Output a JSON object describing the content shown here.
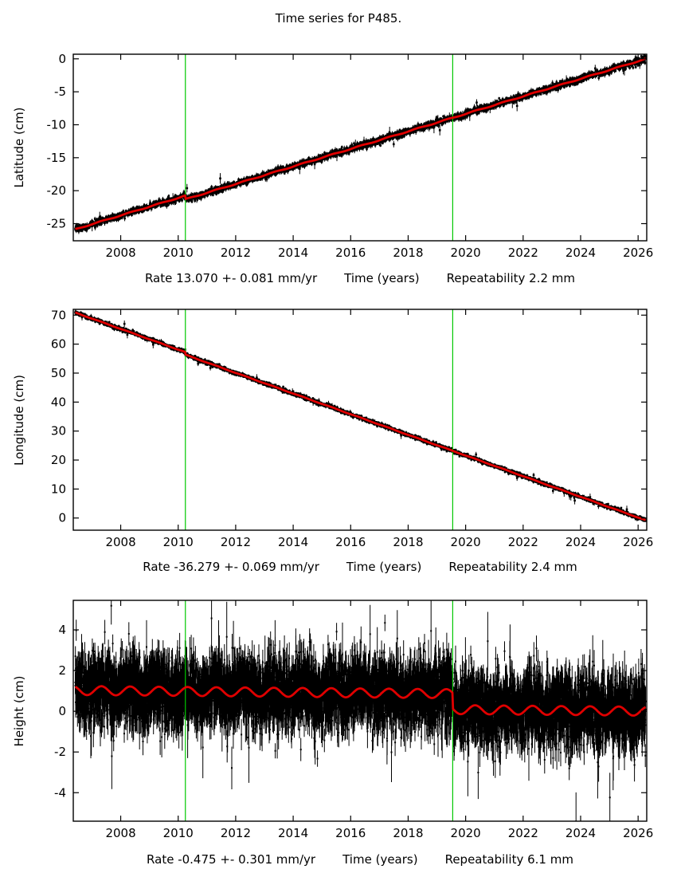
{
  "title": "Time series for P485.",
  "station_id": "P485",
  "colors": {
    "points": "#000000",
    "trend": "#e00000",
    "event_line": "#00c800",
    "frame": "#000000",
    "background": "#ffffff"
  },
  "chart_data": [
    {
      "type": "scatter",
      "name": "latitude",
      "ylabel": "Latitude (cm)",
      "xlabel": "Time (years)",
      "rate_label": "Rate 13.070 +- 0.081 mm/yr",
      "repeatability_label": "Repeatability 2.2 mm",
      "rate_mm_yr": 13.07,
      "rate_sigma_mm_yr": 0.081,
      "repeatability_mm": 2.2,
      "xlim": [
        2006.35,
        2026.3
      ],
      "ylim": [
        -27.6,
        0.7
      ],
      "xticks": [
        2008,
        2010,
        2012,
        2014,
        2016,
        2018,
        2020,
        2022,
        2024,
        2026
      ],
      "yticks": [
        0,
        -5,
        -10,
        -15,
        -20,
        -25
      ],
      "event_lines": [
        2010.25,
        2019.55
      ],
      "grid": false,
      "legend": "none",
      "series": {
        "start_t": 2006.42,
        "end_t": 2026.26,
        "ref_t": 2006.5,
        "intercept_cm": -25.75,
        "slope_cm_yr": 1.33,
        "steps": [
          {
            "t": 2010.25,
            "offset_cm": -0.55
          }
        ],
        "seasonal_amp_cm": 0.06,
        "noise_sd_cm": 0.24,
        "error_bar_cm": 0.3,
        "outlier_frac": 0.01,
        "outlier_sd_cm": 0.6
      }
    },
    {
      "type": "scatter",
      "name": "longitude",
      "ylabel": "Longitude (cm)",
      "xlabel": "Time (years)",
      "rate_label": "Rate -36.279 +- 0.069 mm/yr",
      "repeatability_label": "Repeatability 2.4 mm",
      "rate_mm_yr": -36.279,
      "rate_sigma_mm_yr": 0.069,
      "repeatability_mm": 2.4,
      "xlim": [
        2006.35,
        2026.3
      ],
      "ylim": [
        -4.2,
        72
      ],
      "xticks": [
        2008,
        2010,
        2012,
        2014,
        2016,
        2018,
        2020,
        2022,
        2024,
        2026
      ],
      "yticks": [
        70,
        60,
        50,
        40,
        30,
        20,
        10,
        0
      ],
      "event_lines": [
        2010.25,
        2019.55
      ],
      "grid": false,
      "legend": "none",
      "series": {
        "start_t": 2006.42,
        "end_t": 2026.26,
        "ref_t": 2006.5,
        "intercept_cm": 70.6,
        "slope_cm_yr": -3.565,
        "steps": [
          {
            "t": 2010.25,
            "offset_cm": -0.9
          }
        ],
        "seasonal_amp_cm": 0.07,
        "noise_sd_cm": 0.3,
        "error_bar_cm": 0.45,
        "outlier_frac": 0.012,
        "outlier_sd_cm": 0.9
      }
    },
    {
      "type": "scatter",
      "name": "height",
      "ylabel": "Height (cm)",
      "xlabel": "Time (years)",
      "rate_label": "Rate -0.475 +- 0.301 mm/yr",
      "repeatability_label": "Repeatability 6.1 mm",
      "rate_mm_yr": -0.475,
      "rate_sigma_mm_yr": 0.301,
      "repeatability_mm": 6.1,
      "xlim": [
        2006.35,
        2026.3
      ],
      "ylim": [
        -5.4,
        5.45
      ],
      "xticks": [
        2008,
        2010,
        2012,
        2014,
        2016,
        2018,
        2020,
        2022,
        2024,
        2026
      ],
      "yticks": [
        4,
        2,
        0,
        -2,
        -4
      ],
      "event_lines": [
        2010.25,
        2019.55
      ],
      "grid": false,
      "legend": "none",
      "series": {
        "start_t": 2006.42,
        "end_t": 2026.26,
        "ref_t": 2006.5,
        "intercept_cm": 1.02,
        "slope_cm_yr": -0.012,
        "steps": [
          {
            "t": 2019.55,
            "offset_cm": -0.78
          }
        ],
        "seasonal_amp_cm": 0.22,
        "noise_sd_cm": 0.8,
        "error_bar_cm": 0.6,
        "outlier_frac": 0.025,
        "outlier_sd_cm": 1.3
      }
    }
  ]
}
